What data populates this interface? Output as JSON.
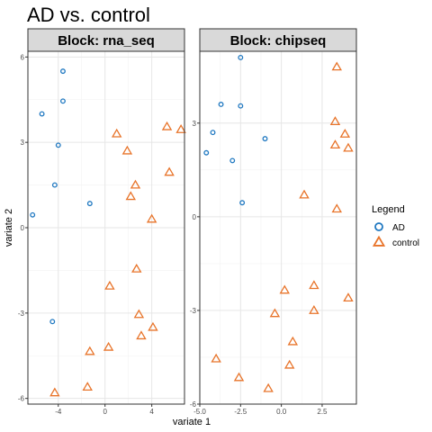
{
  "title": "AD vs. control",
  "legend": {
    "title": "Legend",
    "entries": [
      {
        "label": "AD",
        "shape": "circle",
        "color": "#1f78c1"
      },
      {
        "label": "control",
        "shape": "triangle",
        "color": "#e8742a"
      }
    ]
  },
  "chart_data": [
    {
      "type": "scatter",
      "panel": "Block: rna_seq",
      "xlabel": "variate 1",
      "ylabel": "variate 2",
      "xlim": [
        -6.6,
        6.8
      ],
      "ylim": [
        -6.2,
        6.2
      ],
      "xticks": [
        -4,
        0,
        4
      ],
      "xtick_labels": [
        "-4",
        "0",
        "4"
      ],
      "yticks": [
        -6,
        -3,
        0,
        3,
        6
      ],
      "ytick_labels": [
        "-6",
        "-3",
        "0",
        "3",
        "6"
      ],
      "grid": true,
      "series": [
        {
          "name": "AD",
          "points": [
            [
              -3.6,
              5.5
            ],
            [
              -3.6,
              4.45
            ],
            [
              -5.4,
              4.0
            ],
            [
              -4.0,
              2.9
            ],
            [
              -4.3,
              1.5
            ],
            [
              -1.3,
              0.85
            ],
            [
              -6.2,
              0.45
            ],
            [
              -4.5,
              -3.3
            ]
          ]
        },
        {
          "name": "control",
          "points": [
            [
              5.3,
              3.55
            ],
            [
              6.5,
              3.45
            ],
            [
              1.0,
              3.3
            ],
            [
              1.9,
              2.7
            ],
            [
              5.5,
              1.95
            ],
            [
              2.6,
              1.5
            ],
            [
              2.2,
              1.1
            ],
            [
              4.0,
              0.3
            ],
            [
              2.7,
              -1.45
            ],
            [
              0.4,
              -2.05
            ],
            [
              2.9,
              -3.05
            ],
            [
              4.1,
              -3.5
            ],
            [
              3.1,
              -3.8
            ],
            [
              0.3,
              -4.2
            ],
            [
              -1.3,
              -4.35
            ],
            [
              -1.5,
              -5.6
            ],
            [
              -4.3,
              -5.8
            ]
          ]
        }
      ]
    },
    {
      "type": "scatter",
      "panel": "Block: chipseq",
      "xlabel": "variate 1",
      "ylabel": "variate 2",
      "xlim": [
        -5.0,
        4.6
      ],
      "ylim": [
        -6.0,
        5.3
      ],
      "xticks": [
        -5.0,
        -2.5,
        0.0,
        2.5
      ],
      "xtick_labels": [
        "-5.0",
        "-2.5",
        "0.0",
        "2.5"
      ],
      "yticks": [
        -6,
        -3,
        0,
        3
      ],
      "ytick_labels": [
        "-6",
        "-3",
        "0",
        "3"
      ],
      "grid": true,
      "series": [
        {
          "name": "AD",
          "points": [
            [
              -2.5,
              5.1
            ],
            [
              -3.7,
              3.6
            ],
            [
              -2.5,
              3.55
            ],
            [
              -4.2,
              2.7
            ],
            [
              -1.0,
              2.5
            ],
            [
              -4.6,
              2.05
            ],
            [
              -3.0,
              1.8
            ],
            [
              -2.4,
              0.45
            ]
          ]
        },
        {
          "name": "control",
          "points": [
            [
              3.4,
              4.8
            ],
            [
              3.3,
              3.05
            ],
            [
              3.9,
              2.65
            ],
            [
              3.3,
              2.3
            ],
            [
              4.1,
              2.2
            ],
            [
              1.4,
              0.7
            ],
            [
              3.4,
              0.25
            ],
            [
              2.0,
              -2.2
            ],
            [
              0.2,
              -2.35
            ],
            [
              4.1,
              -2.6
            ],
            [
              2.0,
              -3.0
            ],
            [
              -0.4,
              -3.1
            ],
            [
              0.7,
              -4.0
            ],
            [
              -4.0,
              -4.55
            ],
            [
              0.5,
              -4.75
            ],
            [
              -2.6,
              -5.15
            ],
            [
              -0.8,
              -5.5
            ]
          ]
        }
      ]
    }
  ]
}
